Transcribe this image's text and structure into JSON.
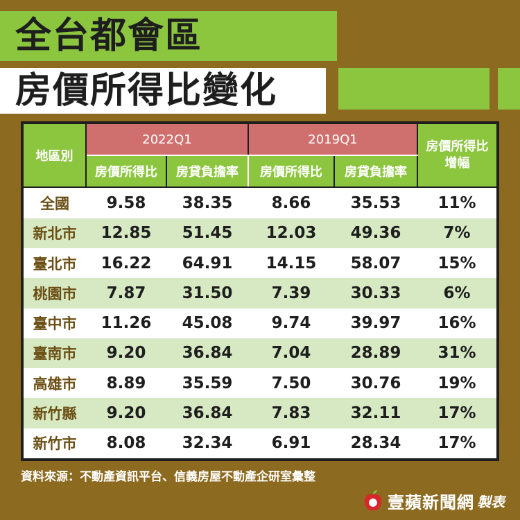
{
  "title_line1": "全台都會區",
  "title_line2": "房價所得比變化",
  "table": {
    "region_header": "地區別",
    "periods": [
      "2022Q1",
      "2019Q1"
    ],
    "sub_headers": [
      "房價所得比",
      "房貸負擔率",
      "房價所得比",
      "房貸負擔率"
    ],
    "growth_header_line1": "房價所得比",
    "growth_header_line2": "增幅",
    "rows": [
      {
        "region": "全國",
        "p2022_ratio": "9.58",
        "p2022_burden": "38.35",
        "p2019_ratio": "8.66",
        "p2019_burden": "35.53",
        "growth": "11%"
      },
      {
        "region": "新北市",
        "p2022_ratio": "12.85",
        "p2022_burden": "51.45",
        "p2019_ratio": "12.03",
        "p2019_burden": "49.36",
        "growth": "7%"
      },
      {
        "region": "臺北市",
        "p2022_ratio": "16.22",
        "p2022_burden": "64.91",
        "p2019_ratio": "14.15",
        "p2019_burden": "58.07",
        "growth": "15%"
      },
      {
        "region": "桃園市",
        "p2022_ratio": "7.87",
        "p2022_burden": "31.50",
        "p2019_ratio": "7.39",
        "p2019_burden": "30.33",
        "growth": "6%"
      },
      {
        "region": "臺中市",
        "p2022_ratio": "11.26",
        "p2022_burden": "45.08",
        "p2019_ratio": "9.74",
        "p2019_burden": "39.97",
        "growth": "16%"
      },
      {
        "region": "臺南市",
        "p2022_ratio": "9.20",
        "p2022_burden": "36.84",
        "p2019_ratio": "7.04",
        "p2019_burden": "28.89",
        "growth": "31%"
      },
      {
        "region": "高雄市",
        "p2022_ratio": "8.89",
        "p2022_burden": "35.59",
        "p2019_ratio": "7.50",
        "p2019_burden": "30.76",
        "growth": "19%"
      },
      {
        "region": "新竹縣",
        "p2022_ratio": "9.20",
        "p2022_burden": "36.84",
        "p2019_ratio": "7.83",
        "p2019_burden": "32.11",
        "growth": "17%"
      },
      {
        "region": "新竹市",
        "p2022_ratio": "8.08",
        "p2022_burden": "32.34",
        "p2019_ratio": "6.91",
        "p2019_burden": "28.34",
        "growth": "17%"
      }
    ]
  },
  "source": "資料來源：不動產資訊平台、信義房屋不動產企研室彙整",
  "brand": {
    "name": "壹蘋新聞網",
    "suffix": "製表",
    "icon": "apple-logo-icon"
  },
  "colors": {
    "background": "#8c6a1f",
    "accent_green": "#8cc63f",
    "period_header": "#d0706e",
    "row_alt": "#d6e9c3"
  }
}
